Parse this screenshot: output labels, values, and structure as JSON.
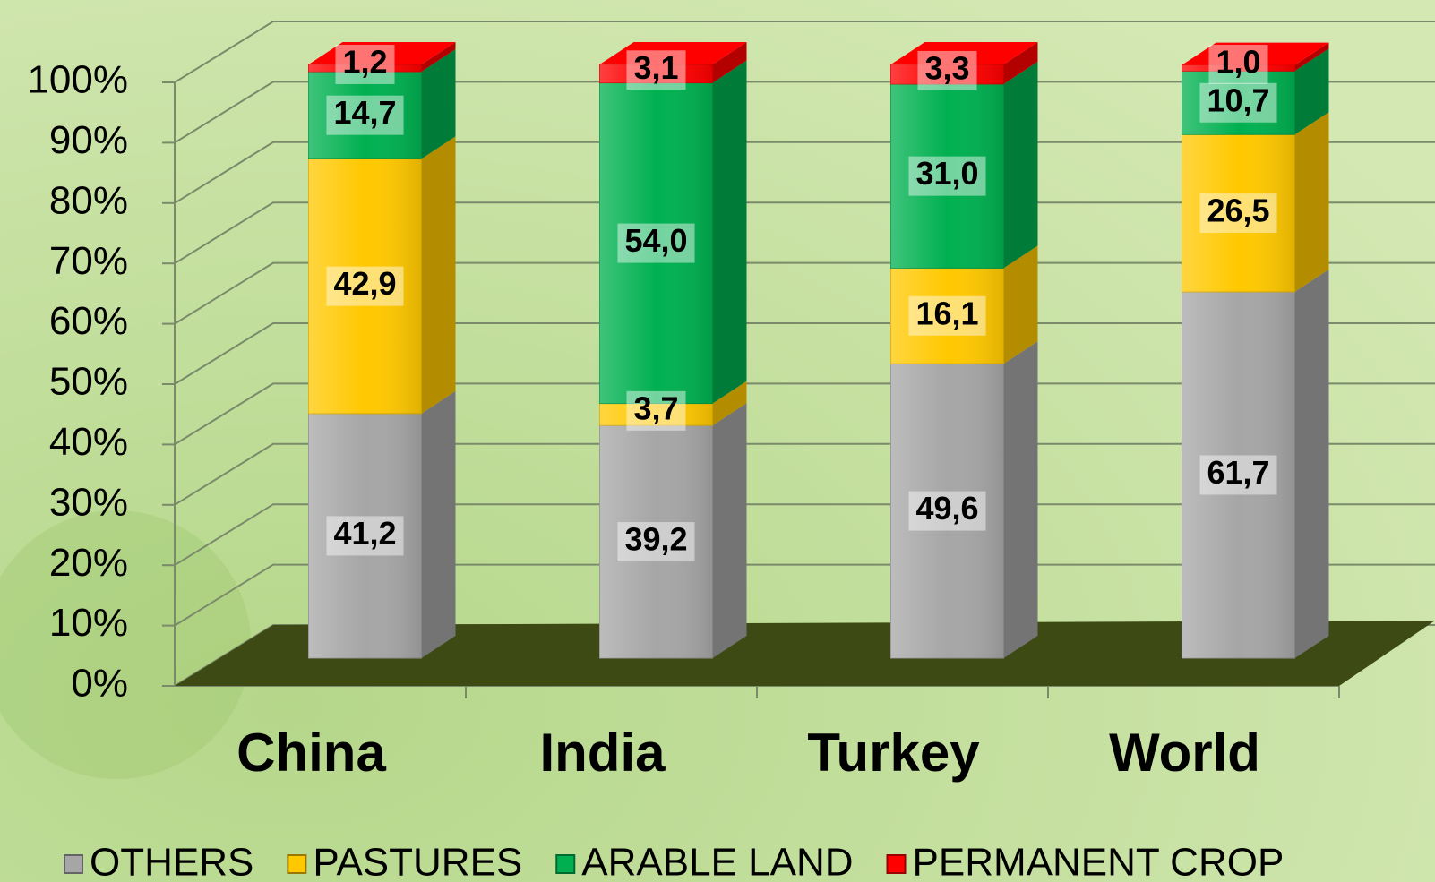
{
  "chart_data": {
    "type": "stacked_bar_3d",
    "categories": [
      "China",
      "India",
      "Turkey",
      "World"
    ],
    "series": [
      {
        "name": "OTHERS",
        "color": "#a6a6a6",
        "values": [
          41.2,
          39.2,
          49.6,
          61.7
        ],
        "value_labels": [
          "41,2",
          "39,2",
          "49,6",
          "61,7"
        ]
      },
      {
        "name": "PASTURES",
        "color": "#ffc800",
        "values": [
          42.9,
          3.7,
          16.1,
          26.5
        ],
        "value_labels": [
          "42,9",
          "3,7",
          "16,1",
          "26,5"
        ]
      },
      {
        "name": "ARABLE LAND",
        "color": "#00b050",
        "values": [
          14.7,
          54.0,
          31.0,
          10.7
        ],
        "value_labels": [
          "14,7",
          "54,0",
          "31,0",
          "10,7"
        ]
      },
      {
        "name": "PERMANENT CROP",
        "color": "#ff0000",
        "values": [
          1.2,
          3.1,
          3.3,
          1.0
        ],
        "value_labels": [
          "1,2",
          "3,1",
          "3,3",
          "1,0"
        ]
      }
    ],
    "ylim": [
      0,
      100
    ],
    "yticks": [
      {
        "value": 0,
        "label": "0%"
      },
      {
        "value": 10,
        "label": "10%"
      },
      {
        "value": 20,
        "label": "20%"
      },
      {
        "value": 30,
        "label": "30%"
      },
      {
        "value": 40,
        "label": "40%"
      },
      {
        "value": 50,
        "label": "50%"
      },
      {
        "value": 60,
        "label": "60%"
      },
      {
        "value": 70,
        "label": "70%"
      },
      {
        "value": 80,
        "label": "80%"
      },
      {
        "value": 90,
        "label": "90%"
      },
      {
        "value": 100,
        "label": "100%"
      }
    ],
    "grid": true
  }
}
